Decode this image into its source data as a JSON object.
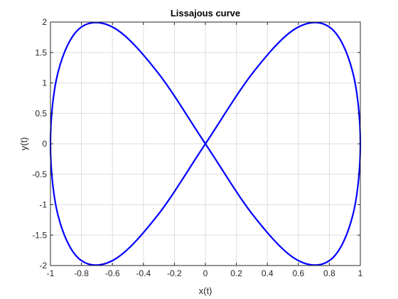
{
  "chart_data": {
    "type": "line",
    "title": "Lissajous curve",
    "xlabel": "x(t)",
    "ylabel": "y(t)",
    "xlim": [
      -1,
      1
    ],
    "ylim": [
      -2,
      2
    ],
    "grid": true,
    "xticks": [
      -1,
      -0.8,
      -0.6,
      -0.4,
      -0.2,
      0,
      0.2,
      0.4,
      0.6,
      0.8,
      1
    ],
    "xtick_labels": [
      "-1",
      "-0.8",
      "-0.6",
      "-0.4",
      "-0.2",
      "0",
      "0.2",
      "0.4",
      "0.6",
      "0.8",
      "1"
    ],
    "yticks": [
      -2,
      -1.5,
      -1,
      -0.5,
      0,
      0.5,
      1,
      1.5,
      2
    ],
    "ytick_labels": [
      "-2",
      "-1.5",
      "-1",
      "-0.5",
      "0",
      "0.5",
      "1",
      "1.5",
      "2"
    ],
    "series": [
      {
        "color": "#0000ff",
        "x": [
          0,
          0.309,
          0.588,
          0.809,
          0.951,
          1,
          0.951,
          0.809,
          0.588,
          0.309,
          0,
          -0.309,
          -0.588,
          -0.809,
          -0.951,
          -1,
          -0.951,
          -0.809,
          -0.588,
          -0.309,
          0
        ],
        "y": [
          0,
          1.176,
          1.902,
          1.902,
          1.176,
          0,
          -1.176,
          -1.902,
          -1.902,
          -1.176,
          0,
          1.176,
          1.902,
          1.902,
          1.176,
          0,
          -1.176,
          -1.902,
          -1.902,
          -1.176,
          0
        ],
        "smooth": true
      }
    ]
  }
}
